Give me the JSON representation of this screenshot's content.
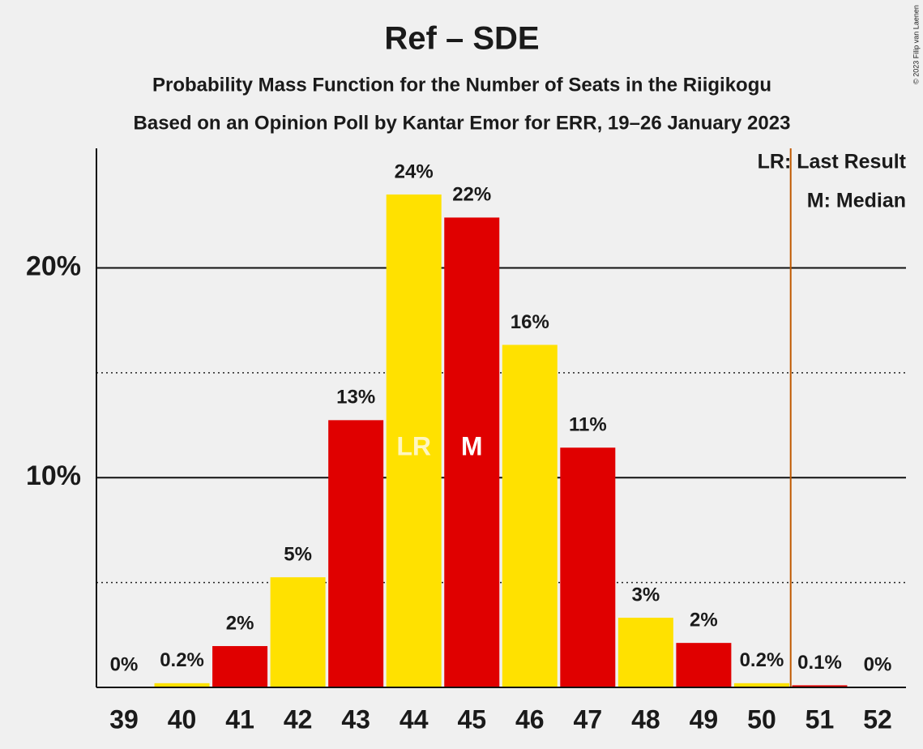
{
  "chart_data": {
    "type": "bar",
    "title": "Ref – SDE",
    "subtitle": "Probability Mass Function for the Number of Seats in the Riigikogu",
    "subtitle2": "Based on an Opinion Poll by Kantar Emor for ERR, 19–26 January 2023",
    "copyright": "© 2023 Filip van Laenen",
    "categories": [
      "39",
      "40",
      "41",
      "42",
      "43",
      "44",
      "45",
      "46",
      "47",
      "48",
      "49",
      "50",
      "51",
      "52"
    ],
    "values": [
      0,
      0.2,
      1.97,
      5.25,
      12.74,
      23.5,
      22.4,
      16.33,
      11.43,
      3.32,
      2.12,
      0.2,
      0.1,
      0
    ],
    "value_labels": [
      "0%",
      "0.2%",
      "2%",
      "5%",
      "13%",
      "24%",
      "22%",
      "16%",
      "11%",
      "3%",
      "2%",
      "0.2%",
      "0.1%",
      "0%"
    ],
    "colors": [
      "#e00000",
      "#ffe100",
      "#e00000",
      "#ffe100",
      "#e00000",
      "#ffe100",
      "#e00000",
      "#ffe100",
      "#e00000",
      "#ffe100",
      "#e00000",
      "#ffe100",
      "#e00000",
      "#ffe100"
    ],
    "ylim": [
      0,
      25.7
    ],
    "yticks": [
      {
        "value": 10,
        "label": "10%"
      },
      {
        "value": 20,
        "label": "20%"
      }
    ],
    "yminorticks": [
      5,
      15
    ],
    "last_result_x": 50.5,
    "last_result_color": "#c05a00",
    "annotations": [
      {
        "category": 5,
        "text": "LR"
      },
      {
        "category": 6,
        "text": "M"
      }
    ],
    "legend": [
      "LR: Last Result",
      "M: Median"
    ]
  }
}
